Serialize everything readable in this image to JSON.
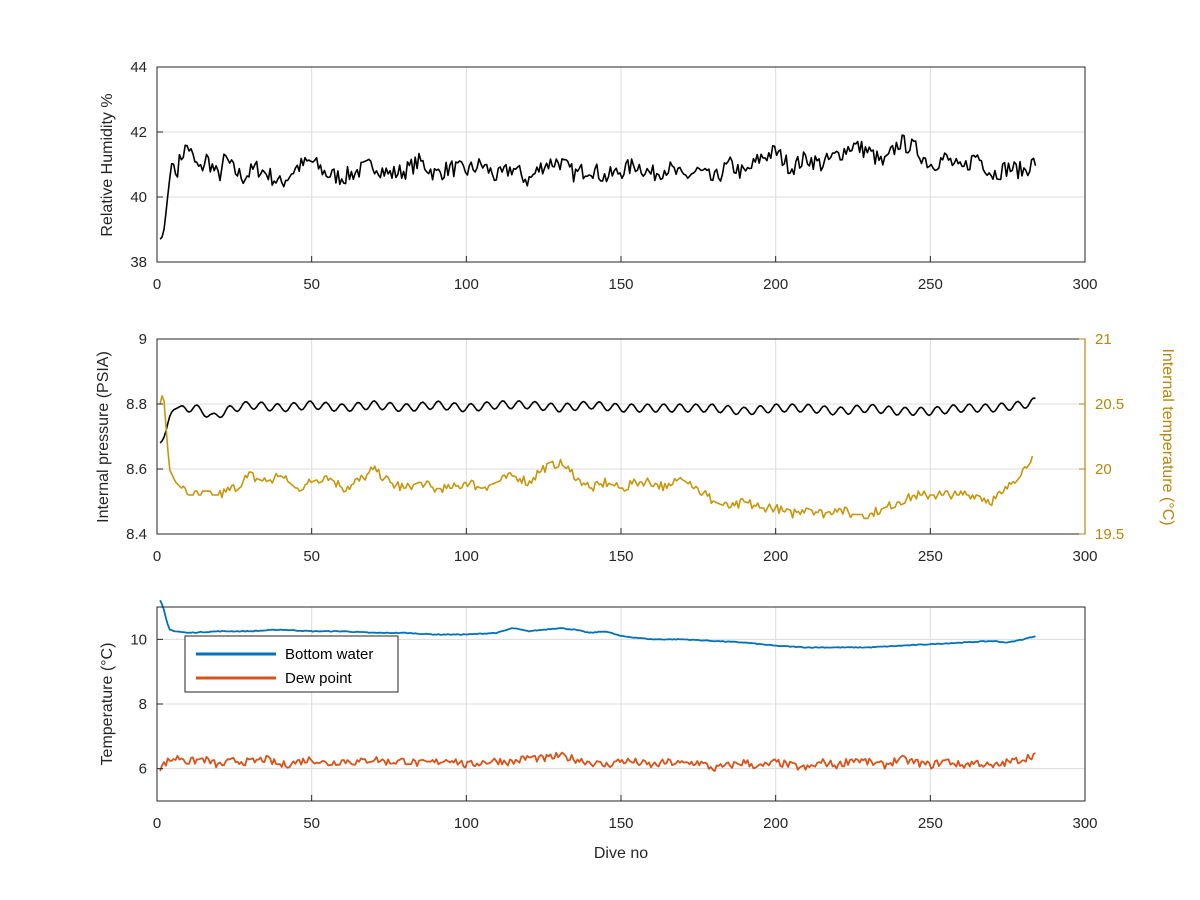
{
  "chart_data": [
    {
      "type": "line",
      "ylabel": "Relative Humidity %",
      "xlim": [
        0,
        300
      ],
      "ylim": [
        38,
        44
      ],
      "xticks": [
        0,
        50,
        100,
        150,
        200,
        250,
        300
      ],
      "yticks": [
        38,
        40,
        42,
        44
      ],
      "grid": true,
      "series": [
        {
          "color": "#000000",
          "x": [
            1,
            2,
            3,
            4,
            5,
            6,
            8,
            10,
            12,
            14,
            16,
            18,
            20,
            22,
            25,
            28,
            32,
            36,
            40,
            45,
            50,
            55,
            60,
            65,
            70,
            75,
            80,
            85,
            90,
            95,
            100,
            105,
            110,
            115,
            120,
            125,
            130,
            135,
            140,
            145,
            150,
            155,
            160,
            165,
            170,
            175,
            180,
            185,
            190,
            195,
            200,
            205,
            210,
            215,
            220,
            225,
            230,
            235,
            240,
            245,
            250,
            255,
            260,
            265,
            270,
            275,
            280,
            284
          ],
          "values": [
            38.7,
            38.8,
            39.6,
            40.5,
            41.2,
            40.7,
            41.3,
            41.6,
            41.1,
            40.8,
            41.2,
            40.9,
            40.6,
            41.2,
            40.8,
            40.6,
            40.9,
            40.7,
            40.4,
            40.9,
            41.1,
            40.7,
            40.6,
            40.8,
            41.0,
            40.7,
            40.8,
            41.1,
            40.7,
            40.9,
            40.8,
            41.0,
            40.6,
            40.9,
            40.5,
            41.0,
            41.1,
            40.7,
            40.9,
            40.6,
            40.8,
            41.0,
            40.7,
            40.9,
            40.6,
            40.8,
            40.5,
            41.0,
            40.7,
            41.2,
            41.4,
            40.9,
            41.2,
            41.0,
            41.3,
            41.6,
            41.4,
            41.0,
            41.7,
            41.5,
            41.0,
            41.2,
            40.8,
            41.3,
            40.7,
            40.9,
            40.8,
            41.1
          ]
        }
      ]
    },
    {
      "type": "line",
      "ylabel": "Internal pressure (PSIA)",
      "ylabel_right": "Internal temperature (°C)",
      "xlim": [
        0,
        300
      ],
      "ylim": [
        8.4,
        9
      ],
      "ylim_right": [
        19.5,
        21
      ],
      "xticks": [
        0,
        50,
        100,
        150,
        200,
        250,
        300
      ],
      "yticks": [
        8.4,
        8.6,
        8.8,
        9
      ],
      "yticks_right": [
        19.5,
        20,
        20.5,
        21
      ],
      "grid": true,
      "series": [
        {
          "axis": "left",
          "color": "#000000",
          "x": [
            1,
            2,
            3,
            4,
            5,
            7,
            9,
            12,
            15,
            18,
            22,
            25,
            30,
            40,
            50,
            60,
            70,
            80,
            90,
            100,
            110,
            120,
            130,
            140,
            150,
            160,
            170,
            180,
            190,
            200,
            210,
            220,
            230,
            240,
            250,
            260,
            270,
            280,
            284
          ],
          "values": [
            8.68,
            8.69,
            8.72,
            8.76,
            8.78,
            8.79,
            8.8,
            8.8,
            8.79,
            8.77,
            8.79,
            8.8,
            8.81,
            8.8,
            8.81,
            8.8,
            8.81,
            8.8,
            8.81,
            8.8,
            8.81,
            8.81,
            8.8,
            8.81,
            8.8,
            8.8,
            8.8,
            8.8,
            8.79,
            8.8,
            8.8,
            8.79,
            8.8,
            8.79,
            8.79,
            8.8,
            8.8,
            8.81,
            8.82
          ],
          "oscillation_amplitude": 0.025
        },
        {
          "axis": "right",
          "color": "#c8960a",
          "x": [
            1,
            2,
            3,
            4,
            5,
            6,
            8,
            10,
            15,
            20,
            25,
            30,
            35,
            40,
            45,
            50,
            55,
            60,
            65,
            70,
            75,
            80,
            85,
            90,
            95,
            100,
            105,
            110,
            115,
            120,
            125,
            130,
            135,
            140,
            145,
            150,
            155,
            160,
            165,
            170,
            175,
            180,
            185,
            190,
            195,
            200,
            205,
            210,
            215,
            220,
            225,
            230,
            235,
            240,
            245,
            250,
            255,
            260,
            265,
            270,
            275,
            280,
            283
          ],
          "values": [
            20.5,
            20.6,
            20.3,
            20.0,
            19.95,
            19.9,
            19.85,
            19.8,
            19.8,
            19.8,
            19.85,
            19.95,
            19.9,
            19.95,
            19.85,
            19.9,
            19.95,
            19.85,
            19.9,
            20.0,
            19.9,
            19.85,
            19.9,
            19.85,
            19.85,
            19.9,
            19.85,
            19.9,
            19.95,
            19.9,
            20.0,
            20.05,
            19.95,
            19.85,
            19.9,
            19.85,
            19.9,
            19.9,
            19.85,
            19.95,
            19.85,
            19.75,
            19.7,
            19.75,
            19.7,
            19.7,
            19.65,
            19.7,
            19.65,
            19.7,
            19.65,
            19.65,
            19.7,
            19.75,
            19.8,
            19.8,
            19.8,
            19.8,
            19.8,
            19.75,
            19.85,
            20.0,
            20.1
          ]
        }
      ]
    },
    {
      "type": "line",
      "xlabel": "Dive no",
      "ylabel": "Temperature (°C)",
      "xlim": [
        0,
        300
      ],
      "ylim": [
        5,
        11
      ],
      "xticks": [
        0,
        50,
        100,
        150,
        200,
        250,
        300
      ],
      "yticks": [
        6,
        8,
        10
      ],
      "grid": true,
      "legend": "top-left",
      "series": [
        {
          "name": "Bottom water",
          "color": "#0072bd",
          "x": [
            1,
            2,
            3,
            4,
            6,
            10,
            20,
            30,
            40,
            50,
            60,
            70,
            80,
            90,
            100,
            110,
            115,
            120,
            125,
            130,
            135,
            140,
            145,
            150,
            160,
            170,
            180,
            190,
            200,
            210,
            220,
            230,
            240,
            250,
            260,
            270,
            275,
            280,
            284
          ],
          "values": [
            11.2,
            11.0,
            10.6,
            10.3,
            10.25,
            10.2,
            10.25,
            10.25,
            10.3,
            10.25,
            10.25,
            10.2,
            10.2,
            10.15,
            10.15,
            10.2,
            10.35,
            10.25,
            10.3,
            10.35,
            10.3,
            10.2,
            10.25,
            10.1,
            10.0,
            10.0,
            9.95,
            9.9,
            9.8,
            9.75,
            9.75,
            9.75,
            9.8,
            9.85,
            9.9,
            9.95,
            9.9,
            10.0,
            10.1
          ]
        },
        {
          "name": "Dew point",
          "color": "#d95319",
          "x": [
            1,
            3,
            5,
            8,
            10,
            15,
            20,
            25,
            30,
            35,
            40,
            45,
            50,
            55,
            60,
            65,
            70,
            75,
            80,
            85,
            90,
            95,
            100,
            105,
            110,
            115,
            120,
            125,
            130,
            135,
            140,
            145,
            150,
            155,
            160,
            165,
            170,
            175,
            180,
            185,
            190,
            195,
            200,
            205,
            210,
            215,
            220,
            225,
            230,
            235,
            240,
            245,
            250,
            255,
            260,
            265,
            270,
            275,
            280,
            284
          ],
          "values": [
            6.0,
            6.2,
            6.3,
            6.35,
            6.2,
            6.3,
            6.1,
            6.25,
            6.2,
            6.3,
            6.1,
            6.2,
            6.3,
            6.15,
            6.25,
            6.2,
            6.3,
            6.2,
            6.25,
            6.15,
            6.2,
            6.3,
            6.1,
            6.2,
            6.25,
            6.2,
            6.35,
            6.3,
            6.4,
            6.3,
            6.2,
            6.1,
            6.25,
            6.2,
            6.1,
            6.2,
            6.15,
            6.2,
            6.0,
            6.1,
            6.2,
            6.05,
            6.2,
            6.1,
            6.0,
            6.2,
            6.1,
            6.3,
            6.2,
            6.1,
            6.3,
            6.2,
            6.1,
            6.25,
            6.1,
            6.2,
            6.05,
            6.2,
            6.3,
            6.45
          ]
        }
      ]
    }
  ]
}
